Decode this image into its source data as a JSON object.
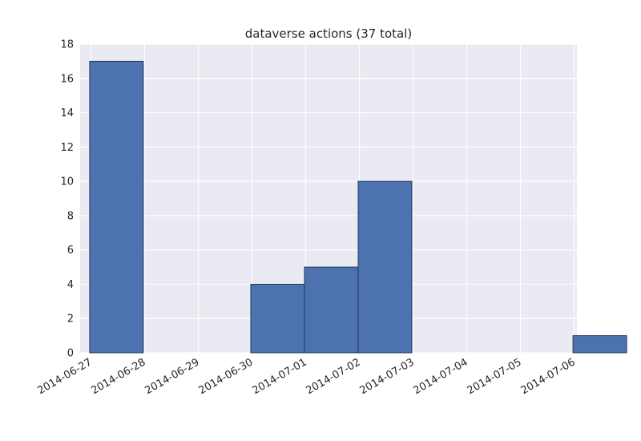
{
  "chart_data": {
    "type": "bar",
    "title": "dataverse actions (37 total)",
    "xlabel": "",
    "ylabel": "",
    "x_ticks": [
      "2014-06-27",
      "2014-06-28",
      "2014-06-29",
      "2014-06-30",
      "2014-07-01",
      "2014-07-02",
      "2014-07-03",
      "2014-07-04",
      "2014-07-05",
      "2014-07-06"
    ],
    "y_ticks": [
      "0",
      "2",
      "4",
      "6",
      "8",
      "10",
      "12",
      "14",
      "16",
      "18"
    ],
    "ylim": [
      0,
      18
    ],
    "xlim": [
      "2014-06-26T19:12",
      "2014-07-06T01:12"
    ],
    "bins": [
      {
        "start": "2014-06-26T23:27",
        "end": "2014-06-27T23:27",
        "value": 17
      },
      {
        "start": "2014-06-27T23:27",
        "end": "2014-06-28T23:27",
        "value": 0
      },
      {
        "start": "2014-06-28T23:27",
        "end": "2014-06-29T23:27",
        "value": 0
      },
      {
        "start": "2014-06-29T23:27",
        "end": "2014-06-30T23:27",
        "value": 4
      },
      {
        "start": "2014-06-30T23:27",
        "end": "2014-07-01T23:27",
        "value": 5
      },
      {
        "start": "2014-07-01T23:27",
        "end": "2014-07-02T23:27",
        "value": 10
      },
      {
        "start": "2014-07-02T23:27",
        "end": "2014-07-03T23:27",
        "value": 0
      },
      {
        "start": "2014-07-03T23:27",
        "end": "2014-07-04T23:27",
        "value": 0
      },
      {
        "start": "2014-07-04T23:27",
        "end": "2014-07-05T23:27",
        "value": 0
      },
      {
        "start": "2014-07-05T23:27",
        "end": "2014-07-06T23:27",
        "value": 1
      }
    ],
    "grid": true,
    "colors": {
      "background": "#eaeaf2",
      "bar": "#4c72b0",
      "bar_edge": "#1f2f4f",
      "grid": "#ffffff"
    }
  }
}
